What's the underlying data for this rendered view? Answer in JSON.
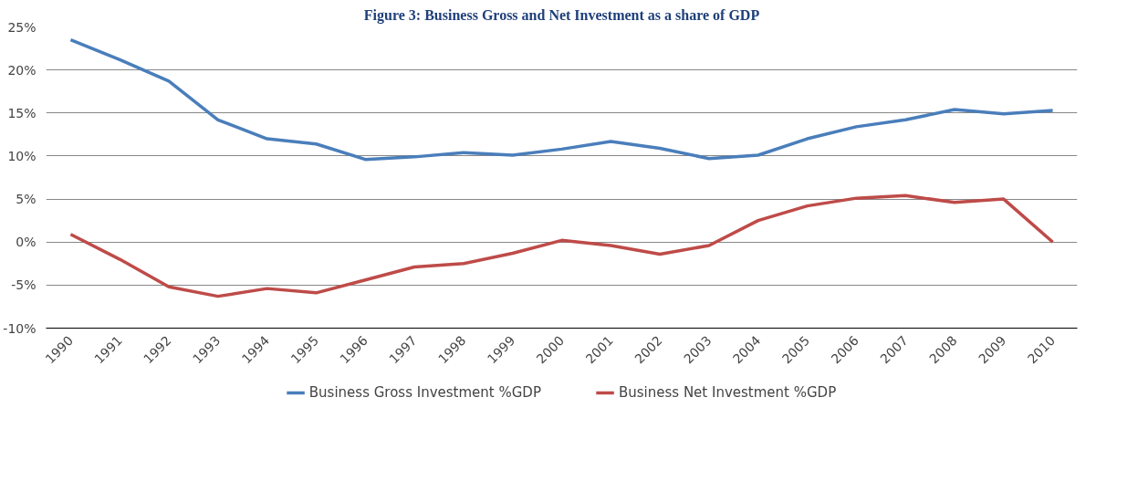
{
  "chart_data": {
    "type": "line",
    "title": "Figure 3: Business Gross and Net Investment as a share of GDP",
    "categories": [
      "1990",
      "1991",
      "1992",
      "1993",
      "1994",
      "1995",
      "1996",
      "1997",
      "1998",
      "1999",
      "2000",
      "2001",
      "2002",
      "2003",
      "2004",
      "2005",
      "2006",
      "2007",
      "2008",
      "2009",
      "2010"
    ],
    "series": [
      {
        "name": "Business Gross Investment %GDP",
        "color": "#4a7ebb",
        "values": [
          23.5,
          21.2,
          18.7,
          14.2,
          12.0,
          11.4,
          9.6,
          9.9,
          10.4,
          10.1,
          10.8,
          11.7,
          10.9,
          9.7,
          10.1,
          12.0,
          13.4,
          14.2,
          15.4,
          14.9,
          15.3
        ]
      },
      {
        "name": "Business Net Investment %GDP",
        "color": "#be4b48",
        "values": [
          0.9,
          -2.0,
          -5.2,
          -6.3,
          -5.4,
          -5.9,
          -4.4,
          -2.9,
          -2.5,
          -1.3,
          0.2,
          -0.4,
          -1.4,
          -0.4,
          2.5,
          4.2,
          5.1,
          5.4,
          4.6,
          5.0,
          0.0
        ]
      }
    ],
    "ylim": [
      -10,
      25
    ],
    "yticks": [
      {
        "value": -10,
        "label": "-10%"
      },
      {
        "value": -5,
        "label": "-5%"
      },
      {
        "value": 0,
        "label": "0%"
      },
      {
        "value": 5,
        "label": "5%"
      },
      {
        "value": 10,
        "label": "10%"
      },
      {
        "value": 15,
        "label": "15%"
      },
      {
        "value": 20,
        "label": "20%"
      },
      {
        "value": 25,
        "label": "25%"
      }
    ],
    "grid": "y",
    "legend": "bottom",
    "marker": "none",
    "line_style": "solid"
  }
}
